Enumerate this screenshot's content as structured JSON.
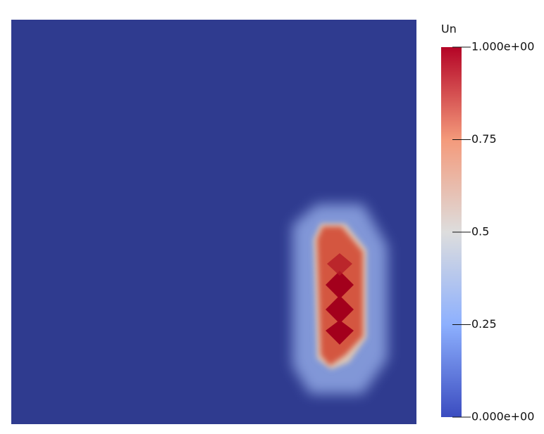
{
  "colorbar": {
    "title": "Un",
    "range": [
      0,
      1
    ],
    "ticks": [
      {
        "value": 1,
        "label": "1.000e+00"
      },
      0.75,
      0.5,
      0.25,
      {
        "value": 0,
        "label": "0.000e+00"
      }
    ]
  }
}
